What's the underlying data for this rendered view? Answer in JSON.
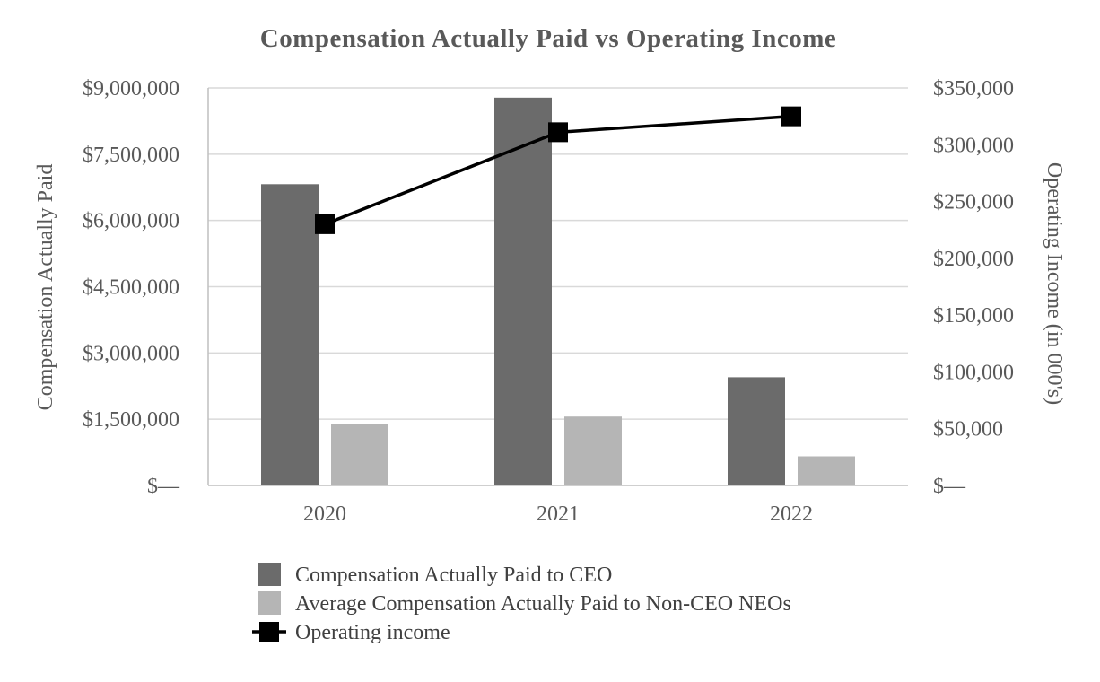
{
  "chart_data": {
    "type": "bar",
    "title": "Compensation Actually Paid vs Operating Income",
    "categories": [
      "2020",
      "2021",
      "2022"
    ],
    "ylabel": "Compensation Actually Paid",
    "y2label": "Operating Income (in 000's)",
    "ylim": [
      0,
      9000000
    ],
    "y2lim": [
      0,
      350000
    ],
    "yticks": [
      "$—",
      "$1,500,000",
      "$3,000,000",
      "$4,500,000",
      "$6,000,000",
      "$7,500,000",
      "$9,000,000"
    ],
    "y2ticks": [
      "$—",
      "$50,000",
      "$100,000",
      "$150,000",
      "$200,000",
      "$250,000",
      "$300,000",
      "$350,000"
    ],
    "grid": true,
    "legend_position": "bottom",
    "series": [
      {
        "name": "Compensation Actually Paid to CEO",
        "type": "bar",
        "axis": "left",
        "color": "#6b6b6b",
        "values": [
          6820000,
          8780000,
          2450000
        ]
      },
      {
        "name": "Average Compensation Actually Paid to Non-CEO NEOs",
        "type": "bar",
        "axis": "left",
        "color": "#b5b5b5",
        "values": [
          1400000,
          1560000,
          660000
        ]
      },
      {
        "name": "Operating income",
        "type": "line",
        "axis": "right",
        "color": "#000000",
        "marker": "square",
        "values": [
          230000,
          311000,
          325000
        ]
      }
    ]
  }
}
